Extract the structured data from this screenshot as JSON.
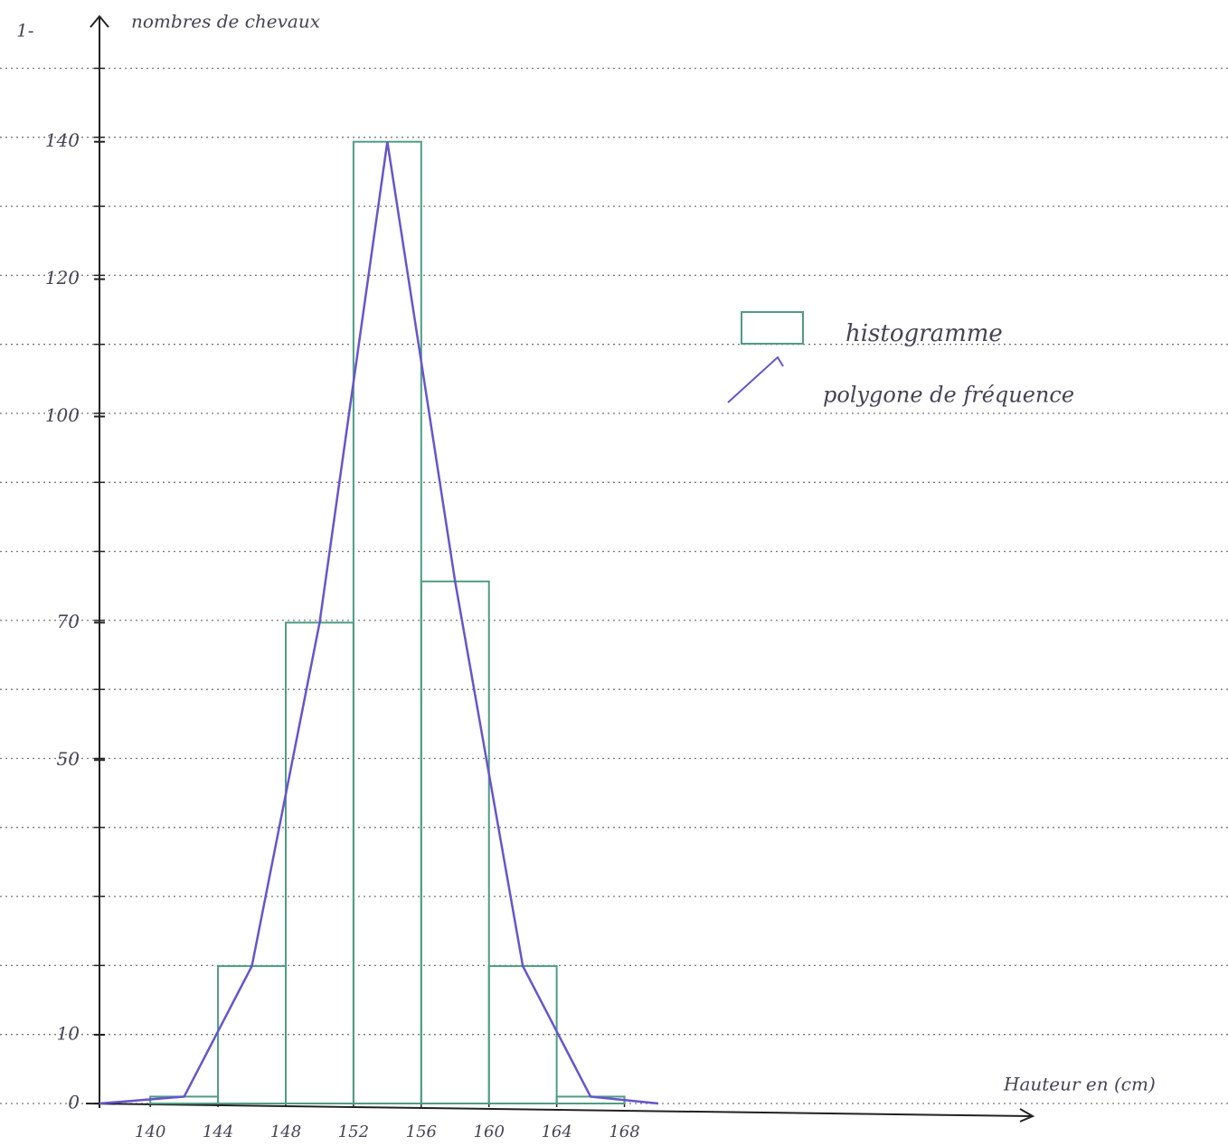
{
  "chart_data": {
    "type": "histogram",
    "title": "1-",
    "y_label": "nombres de chevaux",
    "x_label": "Hauteur en (cm)",
    "bins": [
      140,
      144,
      148,
      152,
      156,
      160,
      164,
      168
    ],
    "counts": [
      1,
      20,
      70,
      140,
      76,
      20,
      1
    ],
    "xlim": [
      137,
      192
    ],
    "ylim": [
      0,
      158
    ],
    "xticks": [
      140,
      144,
      148,
      152,
      156,
      160,
      164,
      168
    ],
    "yticks": [
      0,
      10,
      50,
      70,
      100,
      120,
      140
    ],
    "color": "#4f9c84",
    "polygon_color": "#6655cc",
    "legend": [
      "histogramme",
      "polygone de fréquence"
    ]
  }
}
